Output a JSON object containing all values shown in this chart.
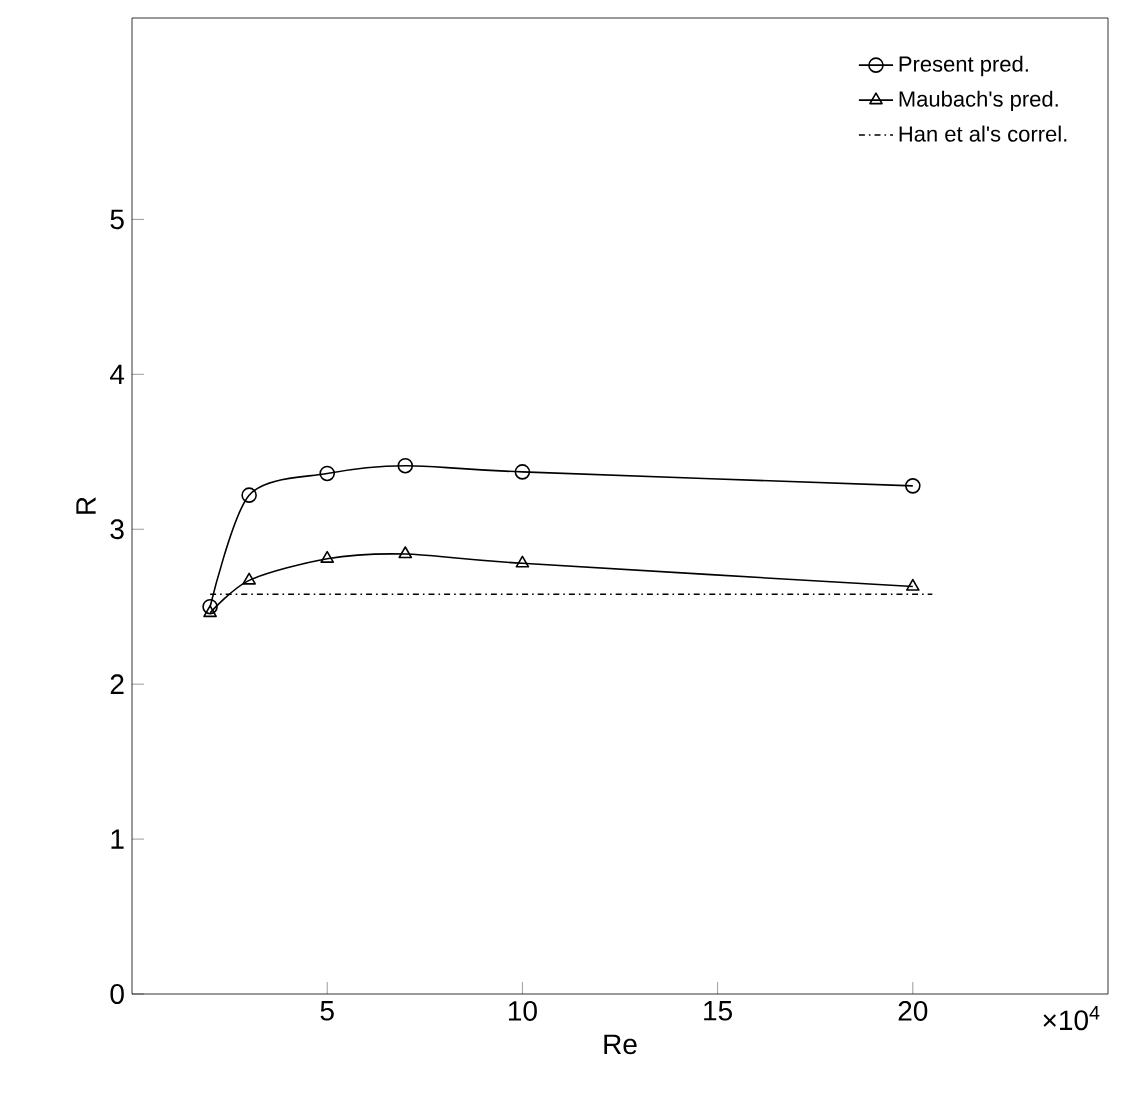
{
  "chart_data": {
    "type": "line",
    "xlabel": "Re",
    "ylabel": "R",
    "xlim": [
      0,
      25
    ],
    "ylim": [
      0,
      6.3
    ],
    "xticks": [
      5,
      10,
      15,
      20
    ],
    "yticks": [
      0,
      1,
      2,
      3,
      4,
      5
    ],
    "grid": false,
    "legend": "top right",
    "annotations": [
      "×10$^{4}$"
    ],
    "series": [
      {
        "name": "Present pred.",
        "color": "#000000",
        "marker": "circle",
        "line_style": "solid",
        "x": [
          2,
          3,
          5,
          7,
          10,
          20
        ],
        "values": [
          2.5,
          3.22,
          3.36,
          3.41,
          3.37,
          3.28
        ]
      },
      {
        "name": "Maubach's pred.",
        "color": "#000000",
        "marker": "triangle",
        "line_style": "solid",
        "x": [
          2,
          3,
          5,
          7,
          10,
          20
        ],
        "values": [
          2.46,
          2.67,
          2.81,
          2.84,
          2.78,
          2.63
        ]
      },
      {
        "name": "Han et al's correl.",
        "color": "#000000",
        "marker": "none",
        "line_style": "dashdot",
        "x": [
          2,
          20.5
        ],
        "values": [
          2.58,
          2.58
        ]
      }
    ]
  }
}
